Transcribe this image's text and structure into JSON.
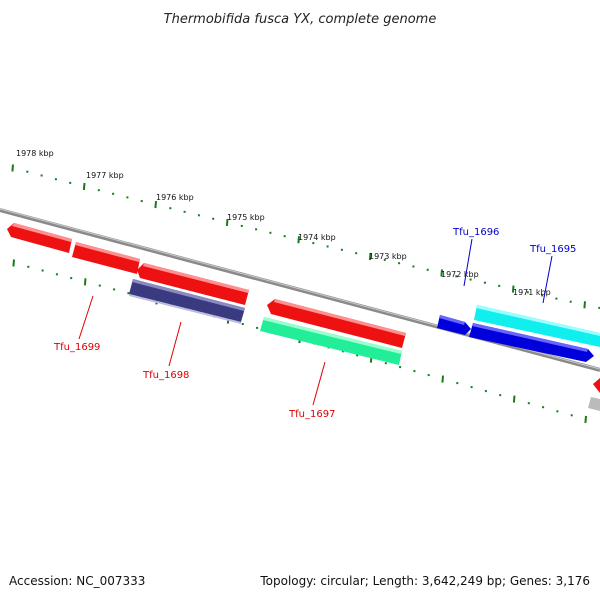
{
  "title": "Thermobifida fusca YX, complete genome",
  "footer": {
    "accession": "Accession: NC_007333",
    "summary": "Topology: circular; Length: 3,642,249 bp; Genes: 3,176"
  },
  "colors": {
    "backbone": "#888888",
    "ticks": "#1a7a1a",
    "label_red": "#dd0000",
    "label_blue": "#0000cc",
    "gene_red": "#ee1111",
    "gene_navy": "#3a3a80",
    "gene_teal": "#22ee99",
    "gene_blue": "#0000dd",
    "gene_cyan": "#11eeee",
    "gene_gray": "#bbbbbb"
  },
  "kbp_ticks": [
    "1978 kbp",
    "1977 kbp",
    "1976 kbp",
    "1975 kbp",
    "1974 kbp",
    "1973 kbp",
    "1972 kbp",
    "1971 kbp"
  ],
  "gene_labels": [
    {
      "id": "Tfu_1699",
      "label": "Tfu_1699",
      "color": "red"
    },
    {
      "id": "Tfu_1698",
      "label": "Tfu_1698",
      "color": "red"
    },
    {
      "id": "Tfu_1697",
      "label": "Tfu_1697",
      "color": "red"
    },
    {
      "id": "Tfu_1696",
      "label": "Tfu_1696",
      "color": "blue"
    },
    {
      "id": "Tfu_1695",
      "label": "Tfu_1695",
      "color": "blue"
    }
  ]
}
